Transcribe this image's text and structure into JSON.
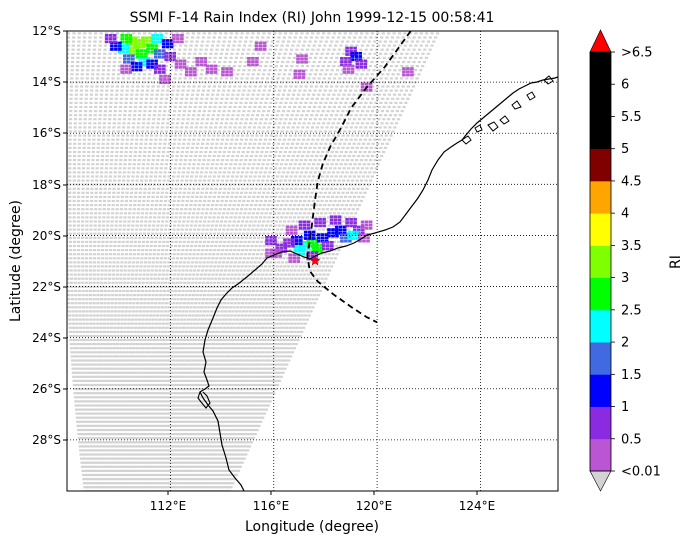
{
  "title": "SSMI F-14 Rain Index (RI) John 1999-12-15 00:58:41",
  "xlabel": "Longitude (degree)",
  "ylabel": "Latitude (degree)",
  "colorbar_label": "RI",
  "chart_data": {
    "type": "heatmap",
    "projection": "cylindrical",
    "lon_range": [
      108,
      127
    ],
    "lat_range": [
      -30,
      -12
    ],
    "x_ticks": [
      112,
      116,
      120,
      124
    ],
    "x_tick_labels": [
      "112°E",
      "116°E",
      "120°E",
      "124°E"
    ],
    "y_ticks": [
      -12,
      -14,
      -16,
      -18,
      -20,
      -22,
      -24,
      -26,
      -28
    ],
    "y_tick_labels": [
      "12°S",
      "14°S",
      "16°S",
      "18°S",
      "20°S",
      "22°S",
      "24°S",
      "26°S",
      "28°S"
    ],
    "grid": "dotted",
    "colorbar": {
      "extend": "both",
      "under_color": "#d3d3d3",
      "over_color": "#ff0000",
      "bounds": [
        0.01,
        0.5,
        1,
        1.5,
        2,
        2.5,
        3,
        3.5,
        4,
        4.5,
        5,
        5.5,
        6,
        6.5
      ],
      "tick_labels": [
        "<0.01",
        "0.5",
        "1",
        "1.5",
        "2",
        "2.5",
        "3",
        "3.5",
        "4",
        "4.5",
        "5",
        "5.5",
        "6",
        ">6.5"
      ],
      "colors": [
        "#ba55d3",
        "#8a2be2",
        "#0000ff",
        "#4169e1",
        "#00ffff",
        "#00ff00",
        "#7fff00",
        "#ffff00",
        "#ffa500",
        "#800000",
        "#000000",
        "#000000",
        "#000000"
      ]
    },
    "swath_color": "#d3d3d3",
    "rain_areas": [
      {
        "center_lon": 110.8,
        "center_lat": -12.6,
        "cells": [
          {
            "lon": 110.5,
            "lat": -12.4,
            "ri": 3.2
          },
          {
            "lon": 110.8,
            "lat": -12.5,
            "ri": 3.1
          },
          {
            "lon": 111.1,
            "lat": -12.4,
            "ri": 3.0
          },
          {
            "lon": 110.6,
            "lat": -12.8,
            "ri": 3.0
          },
          {
            "lon": 110.9,
            "lat": -12.9,
            "ri": 2.8
          },
          {
            "lon": 110.3,
            "lat": -12.3,
            "ri": 2.6
          },
          {
            "lon": 111.3,
            "lat": -12.7,
            "ri": 2.7
          },
          {
            "lon": 111.5,
            "lat": -12.3,
            "ri": 2.3
          },
          {
            "lon": 110.2,
            "lat": -12.7,
            "ri": 2.1
          },
          {
            "lon": 111.0,
            "lat": -13.2,
            "ri": 2.2
          },
          {
            "lon": 111.6,
            "lat": -12.9,
            "ri": 1.8
          },
          {
            "lon": 110.4,
            "lat": -13.1,
            "ri": 1.7
          },
          {
            "lon": 111.3,
            "lat": -13.3,
            "ri": 1.3
          },
          {
            "lon": 109.9,
            "lat": -12.6,
            "ri": 1.2
          },
          {
            "lon": 111.9,
            "lat": -12.5,
            "ri": 1.1
          },
          {
            "lon": 110.7,
            "lat": -13.4,
            "ri": 1.0
          },
          {
            "lon": 109.7,
            "lat": -12.3,
            "ri": 0.8
          },
          {
            "lon": 112.0,
            "lat": -13.0,
            "ri": 0.6
          },
          {
            "lon": 111.6,
            "lat": -13.5,
            "ri": 0.6
          },
          {
            "lon": 110.3,
            "lat": -13.5,
            "ri": 0.4
          },
          {
            "lon": 112.4,
            "lat": -13.3,
            "ri": 0.3
          },
          {
            "lon": 112.8,
            "lat": -13.6,
            "ri": 0.2
          },
          {
            "lon": 111.8,
            "lat": -13.9,
            "ri": 0.3
          },
          {
            "lon": 112.3,
            "lat": -12.3,
            "ri": 0.4
          },
          {
            "lon": 113.2,
            "lat": -13.2,
            "ri": 0.2
          },
          {
            "lon": 113.6,
            "lat": -13.5,
            "ri": 0.2
          },
          {
            "lon": 114.2,
            "lat": -13.6,
            "ri": 0.3
          },
          {
            "lon": 115.2,
            "lat": -13.2,
            "ri": 0.2
          },
          {
            "lon": 115.5,
            "lat": -12.6,
            "ri": 0.2
          },
          {
            "lon": 117.0,
            "lat": -13.7,
            "ri": 0.2
          },
          {
            "lon": 117.1,
            "lat": -13.1,
            "ri": 0.3
          }
        ]
      },
      {
        "center_lon": 119.0,
        "center_lat": -13.2,
        "cells": [
          {
            "lon": 119.0,
            "lat": -12.8,
            "ri": 0.7
          },
          {
            "lon": 119.2,
            "lat": -13.0,
            "ri": 1.2
          },
          {
            "lon": 118.8,
            "lat": -13.2,
            "ri": 0.8
          },
          {
            "lon": 119.4,
            "lat": -13.3,
            "ri": 0.6
          },
          {
            "lon": 118.9,
            "lat": -13.5,
            "ri": 0.3
          },
          {
            "lon": 119.6,
            "lat": -14.2,
            "ri": 0.3
          },
          {
            "lon": 121.2,
            "lat": -13.6,
            "ri": 0.2
          }
        ]
      },
      {
        "center_lon": 117.8,
        "center_lat": -20.3,
        "cells": [
          {
            "lon": 117.2,
            "lat": -20.4,
            "ri": 2.4
          },
          {
            "lon": 117.5,
            "lat": -20.3,
            "ri": 2.7
          },
          {
            "lon": 117.7,
            "lat": -20.5,
            "ri": 2.6
          },
          {
            "lon": 117.0,
            "lat": -20.6,
            "ri": 2.2
          },
          {
            "lon": 116.9,
            "lat": -20.2,
            "ri": 1.3
          },
          {
            "lon": 117.4,
            "lat": -20.0,
            "ri": 1.1
          },
          {
            "lon": 117.9,
            "lat": -20.1,
            "ri": 1.2
          },
          {
            "lon": 118.3,
            "lat": -19.9,
            "ri": 1.4
          },
          {
            "lon": 118.6,
            "lat": -19.8,
            "ri": 1.0
          },
          {
            "lon": 118.8,
            "lat": -20.1,
            "ri": 1.6
          },
          {
            "lon": 118.1,
            "lat": -20.4,
            "ri": 0.9
          },
          {
            "lon": 116.6,
            "lat": -20.3,
            "ri": 0.8
          },
          {
            "lon": 116.3,
            "lat": -20.5,
            "ri": 0.6
          },
          {
            "lon": 115.9,
            "lat": -20.2,
            "ri": 0.5
          },
          {
            "lon": 116.1,
            "lat": -20.7,
            "ri": 0.4
          },
          {
            "lon": 116.7,
            "lat": -19.8,
            "ri": 0.4
          },
          {
            "lon": 117.2,
            "lat": -19.6,
            "ri": 0.5
          },
          {
            "lon": 117.8,
            "lat": -19.5,
            "ri": 0.6
          },
          {
            "lon": 118.4,
            "lat": -19.4,
            "ri": 0.5
          },
          {
            "lon": 119.0,
            "lat": -19.5,
            "ri": 0.7
          },
          {
            "lon": 119.3,
            "lat": -19.8,
            "ri": 0.6
          },
          {
            "lon": 119.1,
            "lat": -20.0,
            "ri": 2.1
          },
          {
            "lon": 119.5,
            "lat": -20.1,
            "ri": 0.4
          },
          {
            "lon": 116.8,
            "lat": -20.9,
            "ri": 0.3
          },
          {
            "lon": 115.9,
            "lat": -20.7,
            "ri": 0.3
          },
          {
            "lon": 117.5,
            "lat": -20.8,
            "ri": 0.6
          },
          {
            "lon": 119.6,
            "lat": -19.6,
            "ri": 0.3
          }
        ]
      }
    ],
    "storm_track": [
      [
        121.3,
        -12.0
      ],
      [
        120.8,
        -12.7
      ],
      [
        120.3,
        -13.4
      ],
      [
        119.6,
        -14.2
      ],
      [
        119.0,
        -15.0
      ],
      [
        118.6,
        -15.8
      ],
      [
        118.2,
        -16.5
      ],
      [
        117.9,
        -17.2
      ],
      [
        117.7,
        -17.9
      ],
      [
        117.6,
        -18.6
      ],
      [
        117.5,
        -19.4
      ],
      [
        117.4,
        -20.2
      ],
      [
        117.3,
        -20.8
      ],
      [
        117.4,
        -21.4
      ],
      [
        117.7,
        -21.8
      ],
      [
        118.3,
        -22.3
      ],
      [
        119.0,
        -22.8
      ],
      [
        119.6,
        -23.2
      ],
      [
        120.0,
        -23.4
      ]
    ],
    "storm_position": {
      "lon": 117.6,
      "lat": -21.0,
      "marker": "star",
      "color": "#ff0000"
    }
  }
}
